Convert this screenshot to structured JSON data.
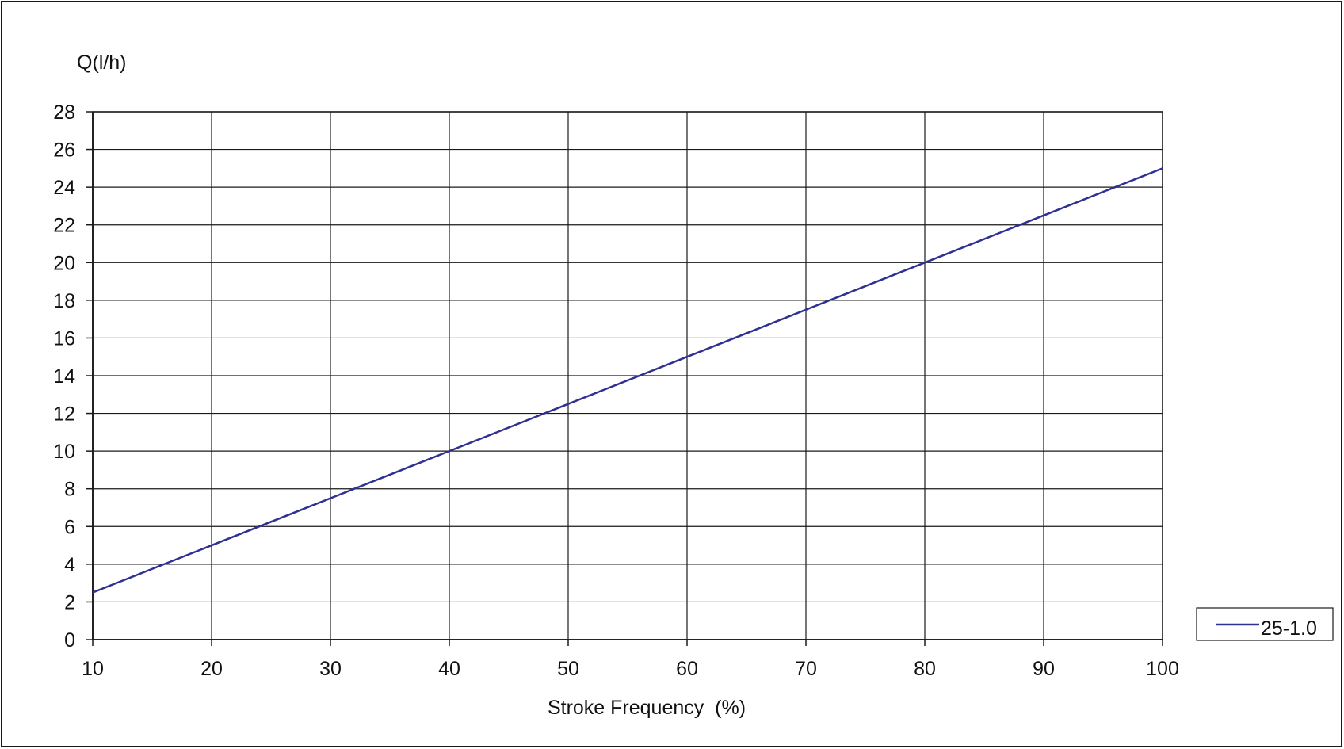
{
  "chart_data": {
    "type": "line",
    "title": "",
    "ylabel": "Q(l/h)",
    "xlabel": "Stroke Frequency  (%)",
    "xlim": [
      10,
      100
    ],
    "ylim": [
      0,
      28
    ],
    "x_ticks": [
      10,
      20,
      30,
      40,
      50,
      60,
      70,
      80,
      90,
      100
    ],
    "y_ticks": [
      0,
      2,
      4,
      6,
      8,
      10,
      12,
      14,
      16,
      18,
      20,
      22,
      24,
      26,
      28
    ],
    "grid": true,
    "legend_position": "right",
    "series": [
      {
        "name": "25-1.0",
        "color": "#2e3192",
        "x": [
          10,
          20,
          30,
          40,
          50,
          60,
          70,
          80,
          90,
          100
        ],
        "y": [
          2.5,
          5,
          7.5,
          10,
          12.5,
          15,
          17.5,
          20,
          22.5,
          25
        ]
      }
    ]
  }
}
